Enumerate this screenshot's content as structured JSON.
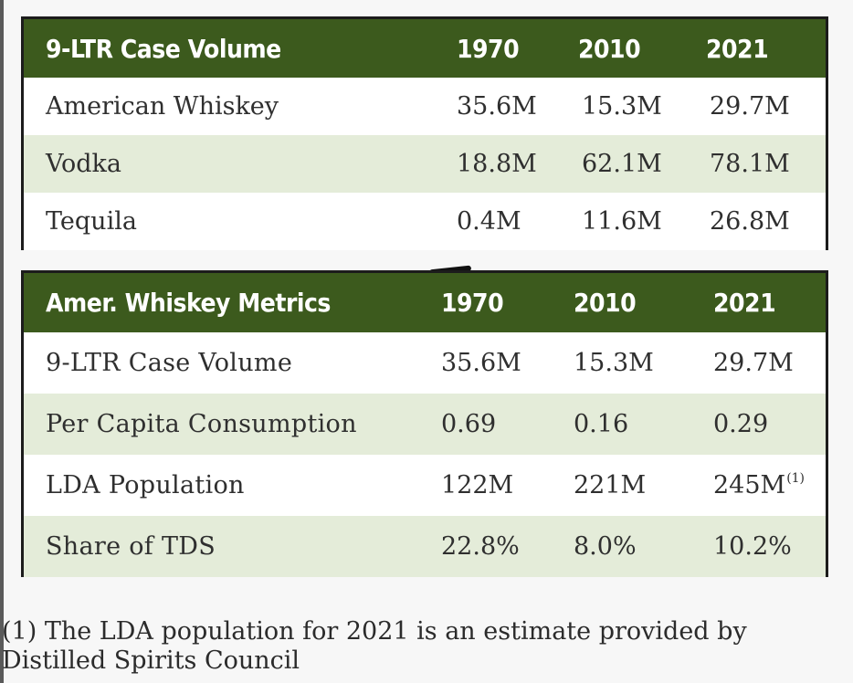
{
  "volume_table": {
    "header": {
      "label": "9-LTR Case Volume",
      "years": [
        "1970",
        "2010",
        "2021"
      ]
    },
    "rows": [
      {
        "label": "American Whiskey",
        "values": [
          "35.6M",
          "15.3M",
          "29.7M"
        ]
      },
      {
        "label": "Vodka",
        "values": [
          "18.8M",
          "62.1M",
          "78.1M"
        ]
      },
      {
        "label": "Tequila",
        "values": [
          "0.4M",
          "11.6M",
          "26.8M"
        ]
      }
    ]
  },
  "metrics_table": {
    "header": {
      "label": "Amer. Whiskey Metrics",
      "years": [
        "1970",
        "2010",
        "2021"
      ]
    },
    "rows": [
      {
        "label": "9-LTR Case Volume",
        "values": [
          "35.6M",
          "15.3M",
          "29.7M"
        ]
      },
      {
        "label": "Per Capita Consumption",
        "values": [
          "0.69",
          "0.16",
          "0.29"
        ]
      },
      {
        "label": "LDA Population",
        "values": [
          "122M",
          "221M",
          "245M"
        ],
        "footnote_mark": "(1)"
      },
      {
        "label": "Share of TDS",
        "values": [
          "22.8%",
          "8.0%",
          "10.2%"
        ]
      }
    ]
  },
  "footnote": {
    "line1": "(1)  The LDA population for 2021 is an estimate provided by",
    "line2": "Distilled Spirits Council"
  },
  "colors": {
    "header_bg": "#3c5a1d",
    "alt_row_bg": "#e4ecd9",
    "border": "#1c1c1c"
  }
}
